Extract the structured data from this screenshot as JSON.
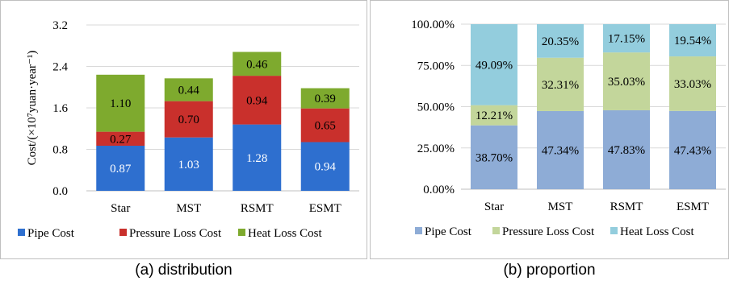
{
  "chart_data": [
    {
      "type": "bar",
      "stacked": true,
      "categories": [
        "Star",
        "MST",
        "RSMT",
        "ESMT"
      ],
      "series": [
        {
          "name": "Pipe Cost",
          "values": [
            0.87,
            1.03,
            1.28,
            0.94
          ],
          "labels": [
            "0.87",
            "1.03",
            "1.28",
            "0.94"
          ],
          "color": "#2e6fcf",
          "label_color": "#ffffff"
        },
        {
          "name": "Pressure Loss Cost",
          "values": [
            0.27,
            0.7,
            0.94,
            0.65
          ],
          "labels": [
            "0.27",
            "0.70",
            "0.94",
            "0.65"
          ],
          "color": "#c9302c",
          "label_color": "#000000"
        },
        {
          "name": "Heat Loss Cost",
          "values": [
            1.1,
            0.44,
            0.46,
            0.39
          ],
          "labels": [
            "1.10",
            "0.44",
            "0.46",
            "0.39"
          ],
          "color": "#7eaa2e",
          "label_color": "#000000"
        }
      ],
      "ylabel": "Cost/(×10⁷yuan·year⁻¹)",
      "ylim": [
        0,
        3.2
      ],
      "yticks": [
        0,
        0.8,
        1.6,
        2.4,
        3.2
      ],
      "ytick_labels": [
        "0.0",
        "0.8",
        "1.6",
        "2.4",
        "3.2"
      ],
      "grid": true,
      "legend": "bottom"
    },
    {
      "type": "bar",
      "stacked": true,
      "percent": true,
      "categories": [
        "Star",
        "MST",
        "RSMT",
        "ESMT"
      ],
      "series": [
        {
          "name": "Pipe Cost",
          "values": [
            38.7,
            47.34,
            47.83,
            47.43
          ],
          "labels": [
            "38.70%",
            "47.34%",
            "47.83%",
            "47.43%"
          ],
          "color": "#8eacd6"
        },
        {
          "name": "Pressure Loss Cost",
          "values": [
            12.21,
            32.31,
            35.03,
            33.03
          ],
          "labels": [
            "12.21%",
            "32.31%",
            "35.03%",
            "33.03%"
          ],
          "color": "#c3d69b"
        },
        {
          "name": "Heat Loss Cost",
          "values": [
            49.09,
            20.35,
            17.15,
            19.54
          ],
          "labels": [
            "49.09%",
            "20.35%",
            "17.15%",
            "19.54%"
          ],
          "color": "#93cddd"
        }
      ],
      "ylim": [
        0,
        100
      ],
      "yticks": [
        0,
        25,
        50,
        75,
        100
      ],
      "ytick_labels": [
        "0.00%",
        "25.00%",
        "50.00%",
        "75.00%",
        "100.00%"
      ],
      "grid": true,
      "legend": "bottom"
    }
  ],
  "captions": [
    "(a) distribution",
    "(b) proportion"
  ]
}
